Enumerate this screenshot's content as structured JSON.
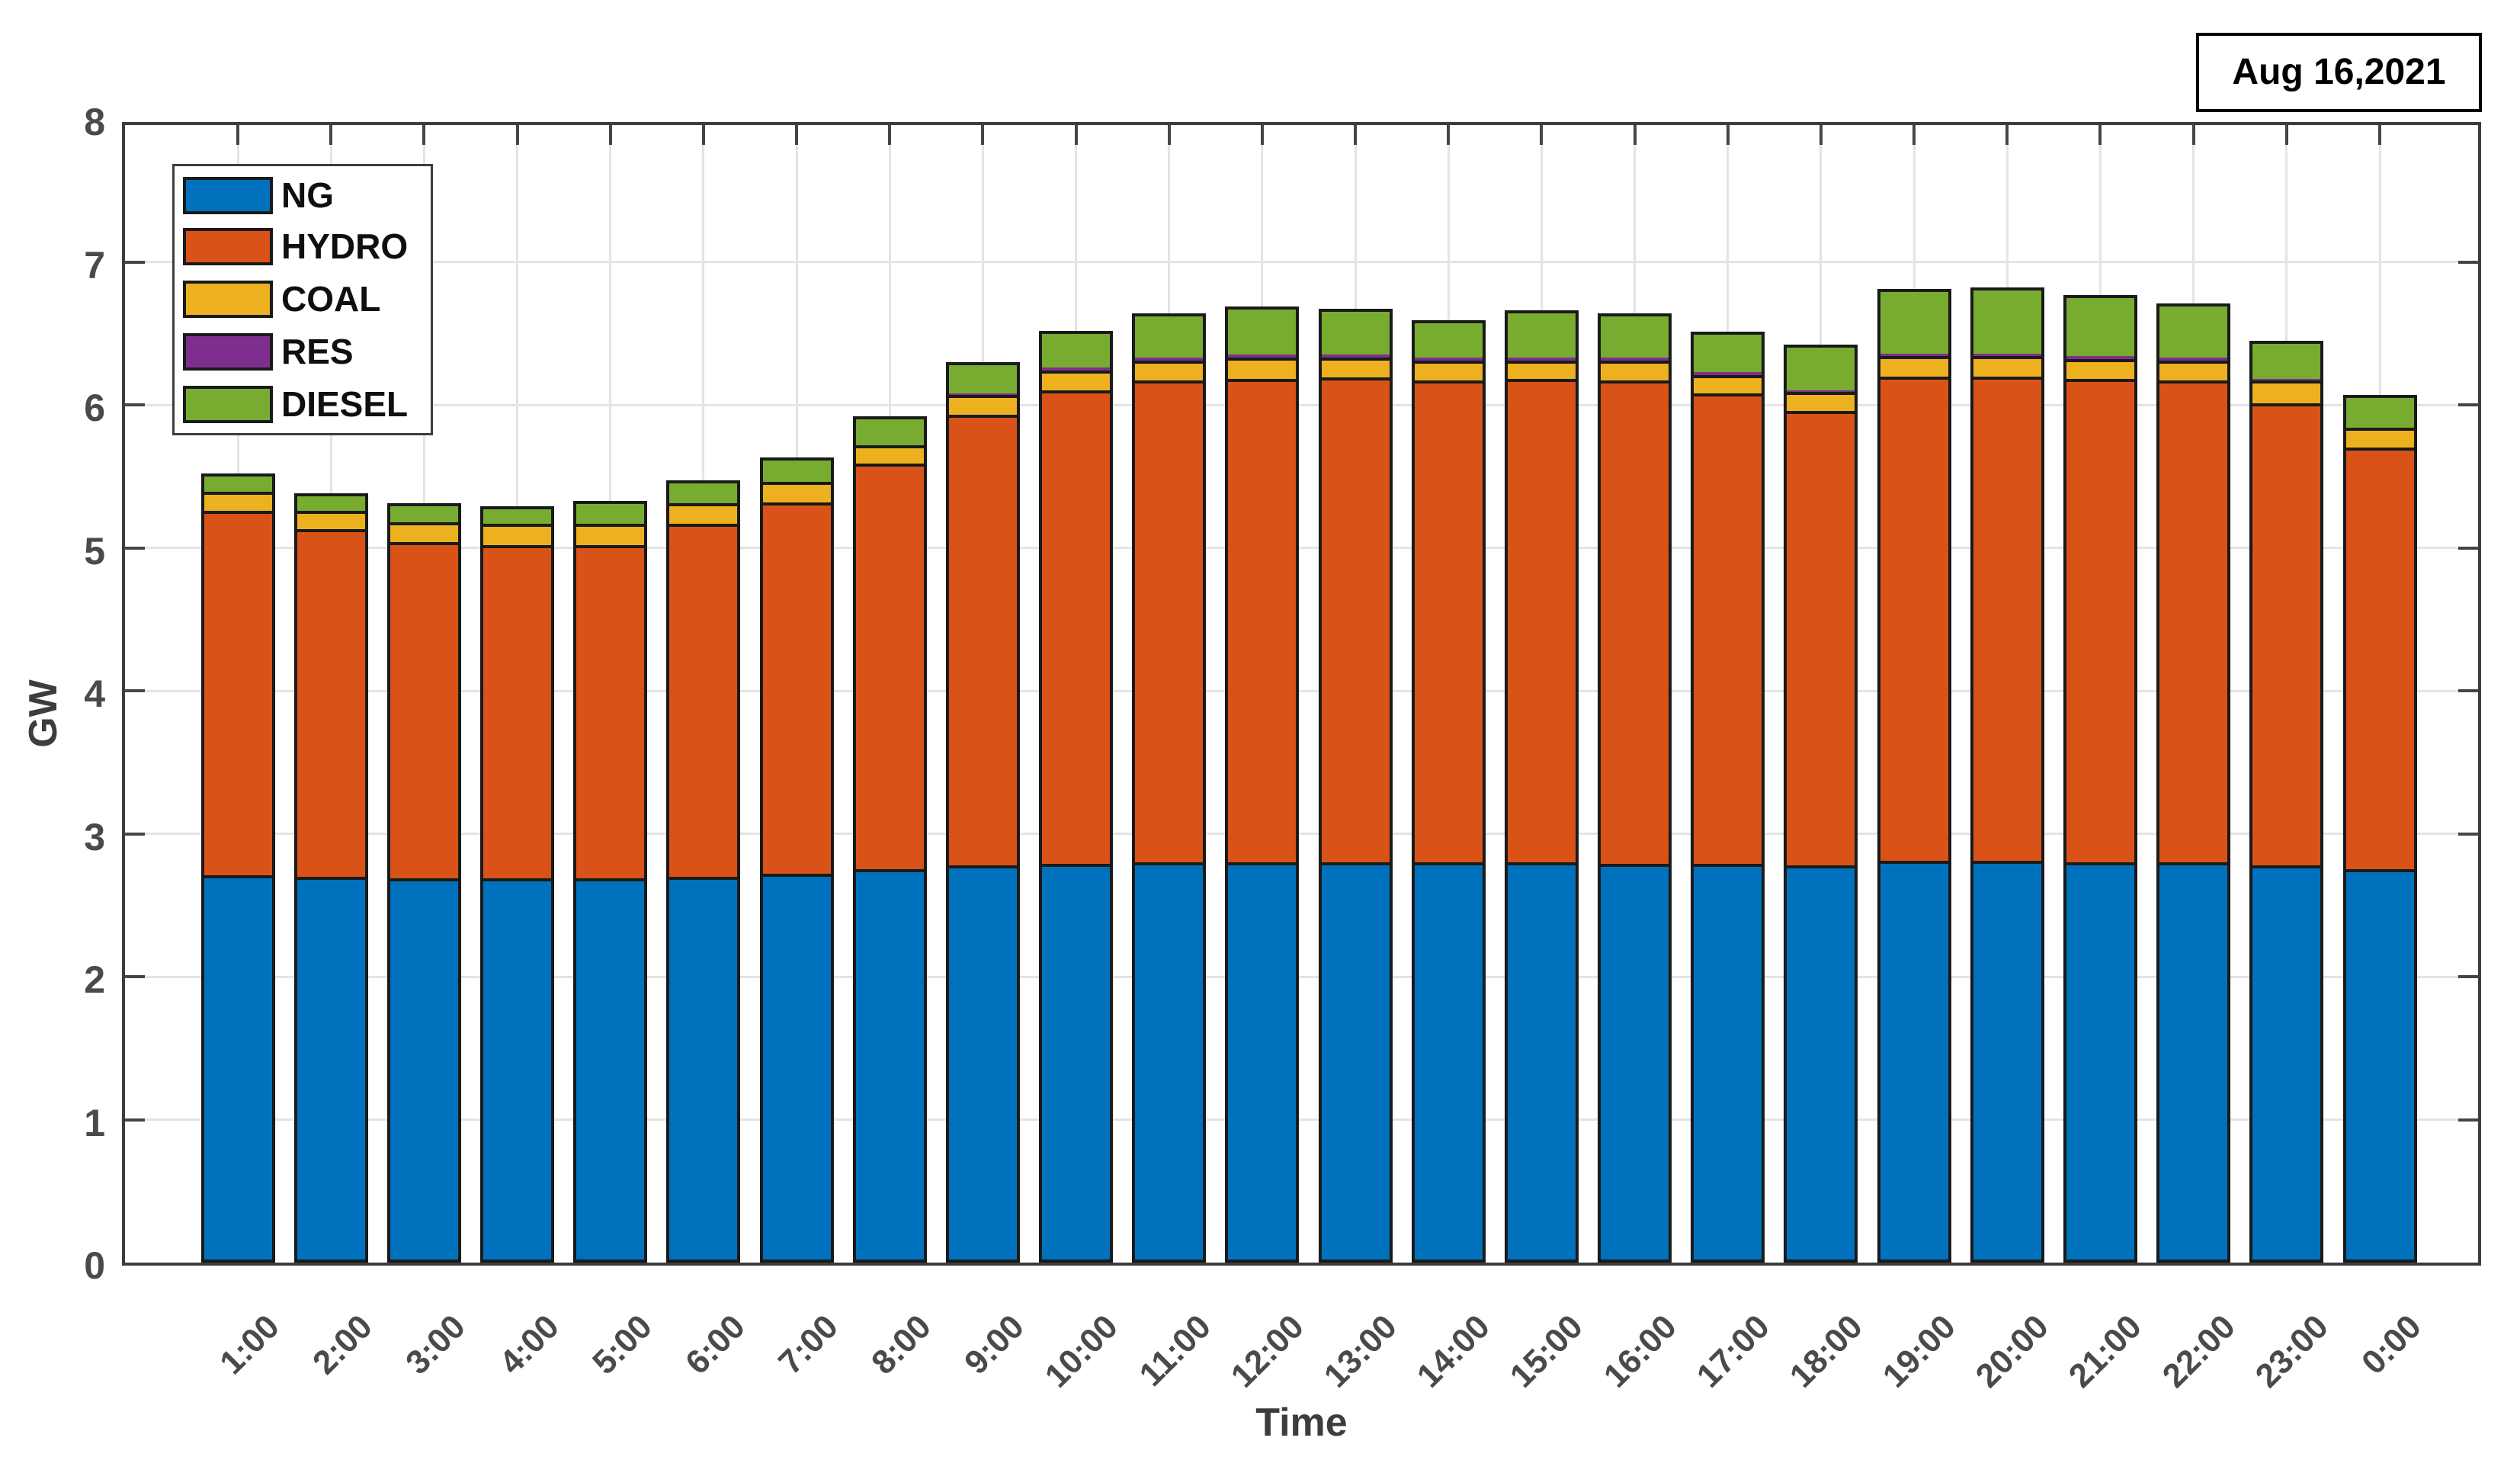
{
  "chart_data": {
    "type": "bar",
    "stacked": true,
    "date_label": "Aug 16,2021",
    "xlabel": "Time",
    "ylabel": "GW",
    "ylim": [
      0,
      8
    ],
    "ytick_labels": [
      "0",
      "1",
      "2",
      "3",
      "4",
      "5",
      "6",
      "7",
      "8"
    ],
    "grid": true,
    "legend_position": "top-left",
    "categories": [
      "1:00",
      "2:00",
      "3:00",
      "4:00",
      "5:00",
      "6:00",
      "7:00",
      "8:00",
      "9:00",
      "10:00",
      "11:00",
      "12:00",
      "13:00",
      "14:00",
      "15:00",
      "16:00",
      "17:00",
      "18:00",
      "19:00",
      "20:00",
      "21:00",
      "22:00",
      "23:00",
      "0:00"
    ],
    "series": [
      {
        "name": "NG",
        "color": "#0072BD",
        "values": [
          2.71,
          2.7,
          2.69,
          2.69,
          2.69,
          2.7,
          2.72,
          2.75,
          2.78,
          2.79,
          2.8,
          2.8,
          2.8,
          2.8,
          2.8,
          2.79,
          2.79,
          2.78,
          2.81,
          2.81,
          2.8,
          2.8,
          2.78,
          2.75
        ]
      },
      {
        "name": "HYDRO",
        "color": "#D95319",
        "values": [
          2.55,
          2.43,
          2.35,
          2.33,
          2.33,
          2.47,
          2.6,
          2.84,
          3.15,
          3.31,
          3.37,
          3.38,
          3.39,
          3.37,
          3.38,
          3.38,
          3.29,
          3.18,
          3.39,
          3.39,
          3.38,
          3.37,
          3.23,
          2.95
        ]
      },
      {
        "name": "COAL",
        "color": "#EDB120",
        "values": [
          0.13,
          0.13,
          0.14,
          0.15,
          0.15,
          0.14,
          0.14,
          0.13,
          0.14,
          0.14,
          0.14,
          0.15,
          0.14,
          0.14,
          0.13,
          0.14,
          0.13,
          0.13,
          0.14,
          0.14,
          0.14,
          0.14,
          0.16,
          0.14
        ]
      },
      {
        "name": "RES",
        "color": "#7E2F8E",
        "values": [
          0,
          0,
          0,
          0,
          0,
          0,
          0,
          0,
          0.01,
          0.02,
          0.02,
          0.02,
          0.02,
          0.02,
          0.02,
          0.02,
          0.02,
          0.01,
          0.02,
          0.02,
          0.02,
          0.02,
          0.01,
          0
        ]
      },
      {
        "name": "DIESEL",
        "color": "#77AC30",
        "values": [
          0.13,
          0.12,
          0.13,
          0.12,
          0.16,
          0.16,
          0.17,
          0.2,
          0.22,
          0.26,
          0.31,
          0.34,
          0.32,
          0.26,
          0.33,
          0.31,
          0.28,
          0.32,
          0.45,
          0.46,
          0.43,
          0.38,
          0.27,
          0.23
        ]
      }
    ],
    "totals": [
      5.52,
      5.38,
      5.31,
      5.29,
      5.33,
      5.47,
      5.63,
      5.92,
      6.3,
      6.52,
      6.64,
      6.69,
      6.67,
      6.59,
      6.66,
      6.64,
      6.51,
      6.42,
      6.81,
      6.82,
      6.77,
      6.71,
      6.45,
      6.07
    ]
  },
  "colors": {
    "bar_edge": "#1a1a1a",
    "axis_frame": "#3d3d3d",
    "grid": "#e4e4e4",
    "tick_text": "#4a4a4e",
    "background": "#ffffff"
  }
}
